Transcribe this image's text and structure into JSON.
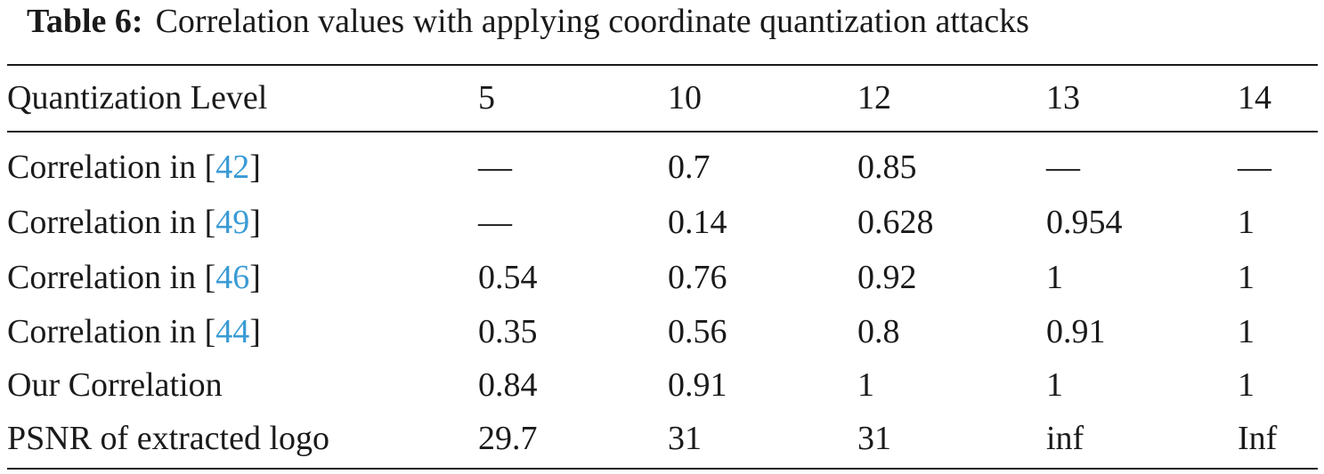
{
  "caption": {
    "label": "Table 6:",
    "text": "Correlation values with applying coordinate quantization attacks"
  },
  "table": {
    "header": [
      "Quantization Level",
      5,
      10,
      12,
      13,
      14
    ],
    "rows": [
      {
        "label": [
          "Correlation in [",
          "42",
          "]"
        ],
        "cells": [
          "—",
          0.7,
          0.85,
          "—",
          "—"
        ]
      },
      {
        "label": [
          "Correlation in [",
          "49",
          "]"
        ],
        "cells": [
          "—",
          0.14,
          0.628,
          0.954,
          1
        ]
      },
      {
        "label": [
          "Correlation in [",
          "46",
          "]"
        ],
        "cells": [
          0.54,
          0.76,
          0.92,
          1,
          1
        ]
      },
      {
        "label": [
          "Correlation in [",
          "44",
          "]"
        ],
        "cells": [
          0.35,
          0.56,
          0.8,
          0.91,
          1
        ]
      },
      {
        "label": [
          "Our Correlation"
        ],
        "cells": [
          0.84,
          0.91,
          1,
          1,
          1
        ]
      },
      {
        "label": [
          "PSNR of extracted logo"
        ],
        "cells": [
          29.7,
          31,
          31,
          "inf",
          "Inf"
        ]
      }
    ]
  }
}
